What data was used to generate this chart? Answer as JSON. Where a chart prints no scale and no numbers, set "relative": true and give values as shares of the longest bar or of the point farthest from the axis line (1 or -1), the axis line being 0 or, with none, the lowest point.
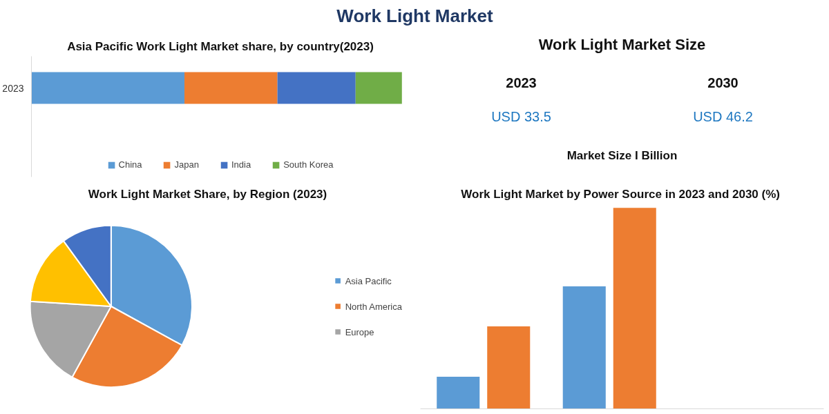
{
  "chart_data": [
    {
      "type": "other",
      "title": "Work Light Market"
    },
    {
      "type": "bar",
      "title": "Asia Pacific Work Light Market share, by country(2023)",
      "orientation": "horizontal",
      "stacked": true,
      "relative": true,
      "categories": [
        "2023"
      ],
      "legend": "bottom",
      "grid": false,
      "series": [
        {
          "name": "China",
          "color": "#5b9bd5",
          "values": [
            0.413
          ]
        },
        {
          "name": "Japan",
          "color": "#ed7d31",
          "values": [
            0.251
          ]
        },
        {
          "name": "India",
          "color": "#4472c4",
          "values": [
            0.211
          ]
        },
        {
          "name": "South Korea",
          "color": "#70ad47",
          "values": [
            0.125
          ]
        }
      ]
    },
    {
      "type": "other",
      "title": "Work Light Market Size",
      "categories": [
        "2023",
        "2030"
      ],
      "annotations": [
        "USD 33.5",
        "USD 46.2",
        "Market Size I Billion"
      ]
    },
    {
      "type": "pie",
      "title": "Work Light Market Share, by Region (2023)",
      "categories": [
        "Asia Pacific",
        "North America",
        "Europe",
        null,
        null
      ],
      "values": [
        33,
        25,
        18,
        14,
        10
      ],
      "colors": [
        "#5b9bd5",
        "#ed7d31",
        "#a5a5a5",
        "#ffc000",
        "#4472c4"
      ],
      "legend": "right"
    },
    {
      "type": "bar",
      "title": "Work Light Market by  Power Source in 2023 and 2030 (%)",
      "relative": true,
      "categories": [
        null,
        null
      ],
      "grid": false,
      "series": [
        {
          "color": "#5b9bd5",
          "values": [
            0.16,
            0.61
          ]
        },
        {
          "color": "#ed7d31",
          "values": [
            0.41,
            1
          ]
        }
      ]
    }
  ]
}
